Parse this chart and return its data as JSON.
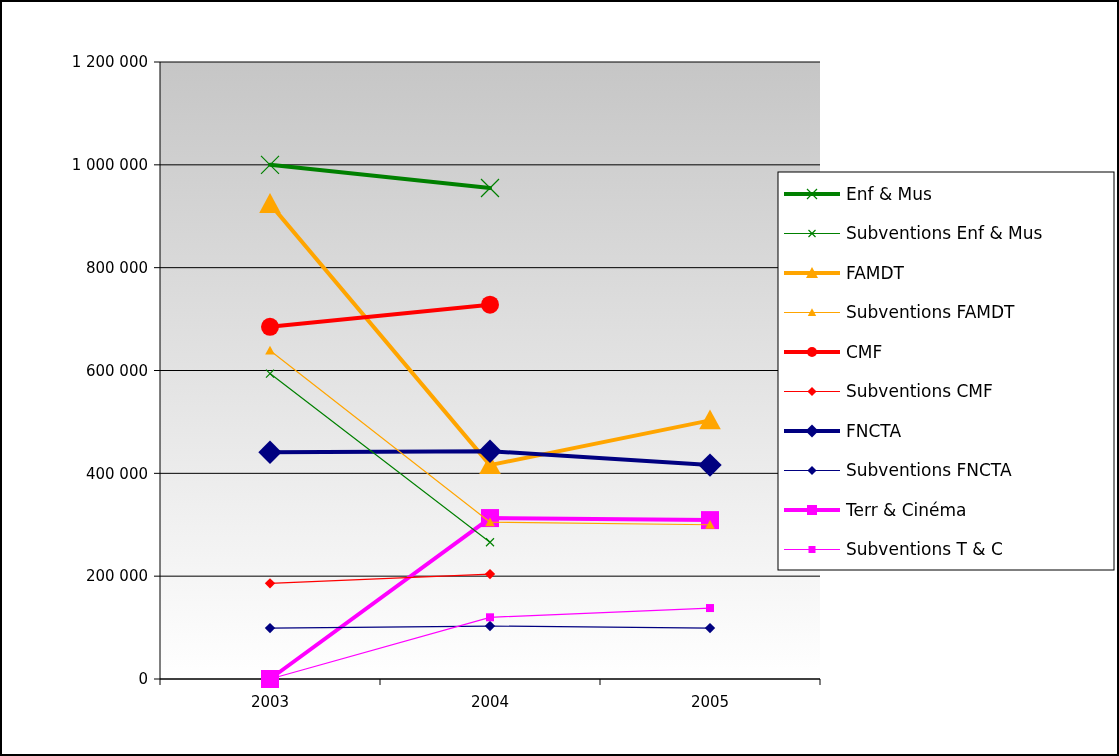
{
  "chart_data": {
    "type": "line",
    "categories": [
      "2003",
      "2004",
      "2005"
    ],
    "ylim": [
      0,
      1200000
    ],
    "yticks": [
      0,
      {
        "value": 200000,
        "label": "200 000"
      },
      {
        "value": 400000,
        "label": "400 000"
      },
      {
        "value": 600000,
        "label": "600 000"
      },
      {
        "value": 800000,
        "label": "800 000"
      },
      {
        "value": 1000000,
        "label": "1 000 000"
      },
      {
        "value": 1200000,
        "label": "1 200 000"
      }
    ],
    "grid": "y",
    "legend": "right",
    "series": [
      {
        "name": "Enf & Mus",
        "color": "#008000",
        "marker": "cross",
        "values": [
          1000000,
          955000,
          null
        ]
      },
      {
        "name": "Subventions Enf & Mus",
        "color": "#008000",
        "marker": "cross",
        "values": [
          594000,
          266000,
          null
        ]
      },
      {
        "name": "FAMDT",
        "color": "#ffa500",
        "marker": "triangle",
        "values": [
          924000,
          416000,
          503000
        ]
      },
      {
        "name": "Subventions FAMDT",
        "color": "#ffa500",
        "marker": "triangle",
        "values": [
          639000,
          305000,
          300000
        ]
      },
      {
        "name": "CMF",
        "color": "#ff0000",
        "marker": "circle",
        "values": [
          685000,
          728000,
          null
        ]
      },
      {
        "name": "Subventions CMF",
        "color": "#ff0000",
        "marker": "diamond",
        "values": [
          186000,
          204000,
          null
        ]
      },
      {
        "name": "FNCTA",
        "color": "#000080",
        "marker": "diamond",
        "values": [
          441000,
          443000,
          416000
        ]
      },
      {
        "name": "Subventions FNCTA",
        "color": "#000080",
        "marker": "diamond",
        "values": [
          99000,
          103000,
          99000
        ]
      },
      {
        "name": "Terr & Cinéma",
        "color": "#ff00ff",
        "marker": "square",
        "values": [
          0,
          313000,
          309000
        ]
      },
      {
        "name": "Subventions T & C",
        "color": "#ff00ff",
        "marker": "square",
        "values": [
          0,
          120000,
          138000
        ]
      }
    ]
  }
}
